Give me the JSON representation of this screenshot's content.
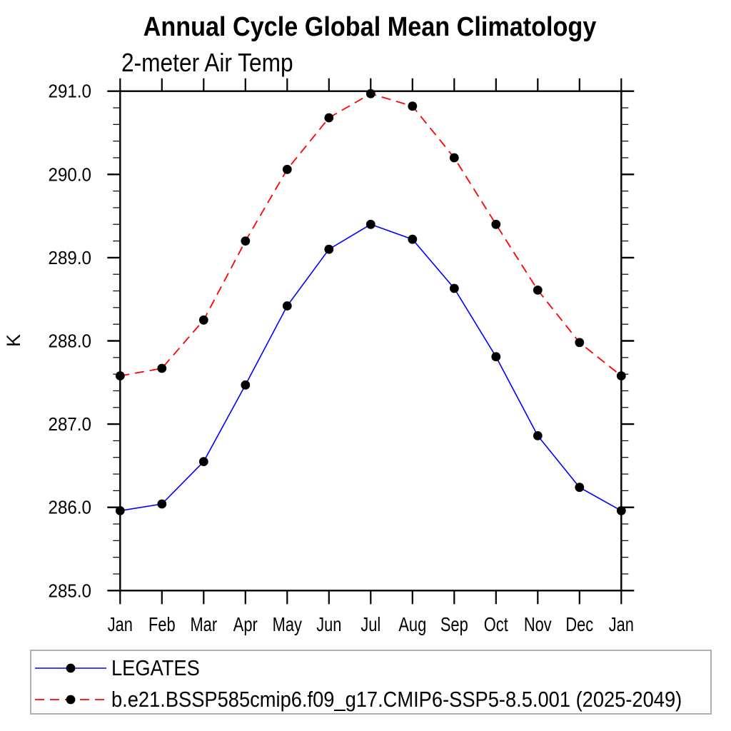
{
  "chart_data": {
    "type": "line",
    "title": "Annual Cycle Global Mean Climatology",
    "subtitle": "2-meter Air Temp",
    "ylabel": "K",
    "categories": [
      "Jan",
      "Feb",
      "Mar",
      "Apr",
      "May",
      "Jun",
      "Jul",
      "Aug",
      "Sep",
      "Oct",
      "Nov",
      "Dec",
      "Jan"
    ],
    "ylim": [
      285.0,
      291.0
    ],
    "y_major_step": 1.0,
    "y_minor_step": 0.2,
    "y_tick_labels": [
      "285.0",
      "286.0",
      "287.0",
      "288.0",
      "289.0",
      "290.0",
      "291.0"
    ],
    "grid": false,
    "legend_position": "bottom-left",
    "series": [
      {
        "name": "LEGATES",
        "color": "#0000ff",
        "line_style": "solid",
        "marker": "filled-circle",
        "marker_color": "#000000",
        "values": [
          285.96,
          286.04,
          286.55,
          287.47,
          288.42,
          289.1,
          289.4,
          289.22,
          288.63,
          287.81,
          286.86,
          286.24,
          285.96
        ]
      },
      {
        "name": "b.e21.BSSP585cmip6.f09_g17.CMIP6-SSP5-8.5.001 (2025-2049)",
        "color": "#ff0000",
        "line_style": "dashed",
        "marker": "filled-circle",
        "marker_color": "#000000",
        "values": [
          287.58,
          287.67,
          288.25,
          289.2,
          290.06,
          290.68,
          290.97,
          290.82,
          290.2,
          289.4,
          288.61,
          287.98,
          287.58
        ]
      }
    ]
  },
  "colors": {
    "axis": "#000000",
    "text": "#000000",
    "legend_border": "#b0b0b0",
    "background": "#ffffff"
  }
}
